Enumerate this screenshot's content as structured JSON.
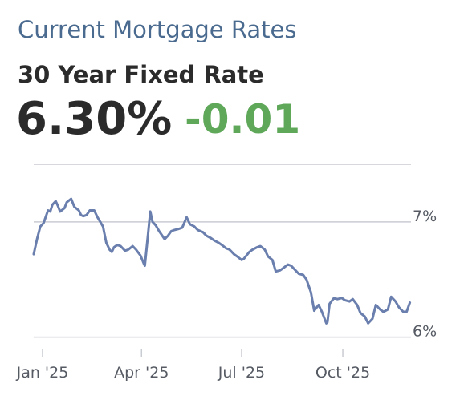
{
  "header": {
    "title": "Current Mortgage Rates",
    "product": "30 Year Fixed Rate",
    "rate": "6.30%",
    "change": "-0.01",
    "change_color": "#5fa85a"
  },
  "chart_data": {
    "type": "line",
    "title": "",
    "xlabel": "",
    "ylabel": "",
    "ylim": [
      5.9,
      7.5
    ],
    "x_range": [
      "2024-12-24",
      "2025-12-02"
    ],
    "x_ticks": [
      {
        "date": "2025-01-01",
        "label": "Jan '25"
      },
      {
        "date": "2025-04-01",
        "label": "Apr '25"
      },
      {
        "date": "2025-07-01",
        "label": "Jul '25"
      },
      {
        "date": "2025-10-01",
        "label": "Oct '25"
      }
    ],
    "y_ticks": [
      {
        "value": 7,
        "label": "7%"
      },
      {
        "value": 6,
        "label": "6%"
      }
    ],
    "grid": true,
    "line_color": "#6a7fad",
    "series": [
      {
        "name": "",
        "x": [
          "2024-12-24",
          "2024-12-27",
          "2024-12-30",
          "2025-01-02",
          "2025-01-06",
          "2025-01-08",
          "2025-01-10",
          "2025-01-13",
          "2025-01-15",
          "2025-01-17",
          "2025-01-21",
          "2025-01-23",
          "2025-01-27",
          "2025-01-30",
          "2025-02-03",
          "2025-02-05",
          "2025-02-07",
          "2025-02-10",
          "2025-02-13",
          "2025-02-17",
          "2025-02-20",
          "2025-02-25",
          "2025-02-28",
          "2025-03-03",
          "2025-03-05",
          "2025-03-07",
          "2025-03-10",
          "2025-03-13",
          "2025-03-17",
          "2025-03-20",
          "2025-03-24",
          "2025-03-27",
          "2025-03-31",
          "2025-04-03",
          "2025-04-04",
          "2025-04-07",
          "2025-04-09",
          "2025-04-11",
          "2025-04-14",
          "2025-04-17",
          "2025-04-22",
          "2025-04-25",
          "2025-04-28",
          "2025-05-01",
          "2025-05-05",
          "2025-05-08",
          "2025-05-12",
          "2025-05-15",
          "2025-05-19",
          "2025-05-22",
          "2025-05-27",
          "2025-05-30",
          "2025-06-03",
          "2025-06-06",
          "2025-06-10",
          "2025-06-13",
          "2025-06-17",
          "2025-06-20",
          "2025-06-24",
          "2025-06-27",
          "2025-07-01",
          "2025-07-03",
          "2025-07-08",
          "2025-07-11",
          "2025-07-15",
          "2025-07-18",
          "2025-07-22",
          "2025-07-25",
          "2025-07-29",
          "2025-08-01",
          "2025-08-05",
          "2025-08-08",
          "2025-08-12",
          "2025-08-15",
          "2025-08-19",
          "2025-08-22",
          "2025-08-26",
          "2025-08-29",
          "2025-09-02",
          "2025-09-05",
          "2025-09-09",
          "2025-09-12",
          "2025-09-16",
          "2025-09-17",
          "2025-09-19",
          "2025-09-23",
          "2025-09-26",
          "2025-09-30",
          "2025-10-03",
          "2025-10-07",
          "2025-10-10",
          "2025-10-14",
          "2025-10-17",
          "2025-10-21",
          "2025-10-24",
          "2025-10-28",
          "2025-10-31",
          "2025-11-04",
          "2025-11-07",
          "2025-11-11",
          "2025-11-14",
          "2025-11-18",
          "2025-11-21",
          "2025-11-25",
          "2025-11-28",
          "2025-12-01"
        ],
        "values": [
          6.72,
          6.85,
          6.96,
          6.99,
          7.1,
          7.09,
          7.15,
          7.18,
          7.14,
          7.09,
          7.12,
          7.17,
          7.2,
          7.13,
          7.1,
          7.06,
          7.05,
          7.06,
          7.1,
          7.1,
          7.04,
          6.96,
          6.82,
          6.76,
          6.74,
          6.78,
          6.8,
          6.79,
          6.75,
          6.76,
          6.79,
          6.76,
          6.71,
          6.64,
          6.62,
          6.9,
          7.09,
          7.0,
          6.97,
          6.92,
          6.85,
          6.88,
          6.92,
          6.93,
          6.94,
          6.95,
          7.04,
          6.98,
          6.96,
          6.93,
          6.91,
          6.88,
          6.86,
          6.84,
          6.82,
          6.8,
          6.77,
          6.76,
          6.72,
          6.7,
          6.67,
          6.68,
          6.74,
          6.76,
          6.78,
          6.79,
          6.76,
          6.7,
          6.67,
          6.57,
          6.58,
          6.6,
          6.63,
          6.62,
          6.58,
          6.55,
          6.54,
          6.5,
          6.39,
          6.23,
          6.28,
          6.22,
          6.12,
          6.13,
          6.29,
          6.34,
          6.33,
          6.34,
          6.32,
          6.31,
          6.33,
          6.28,
          6.21,
          6.18,
          6.12,
          6.16,
          6.28,
          6.24,
          6.22,
          6.24,
          6.35,
          6.31,
          6.26,
          6.22,
          6.22,
          6.3
        ]
      }
    ]
  }
}
